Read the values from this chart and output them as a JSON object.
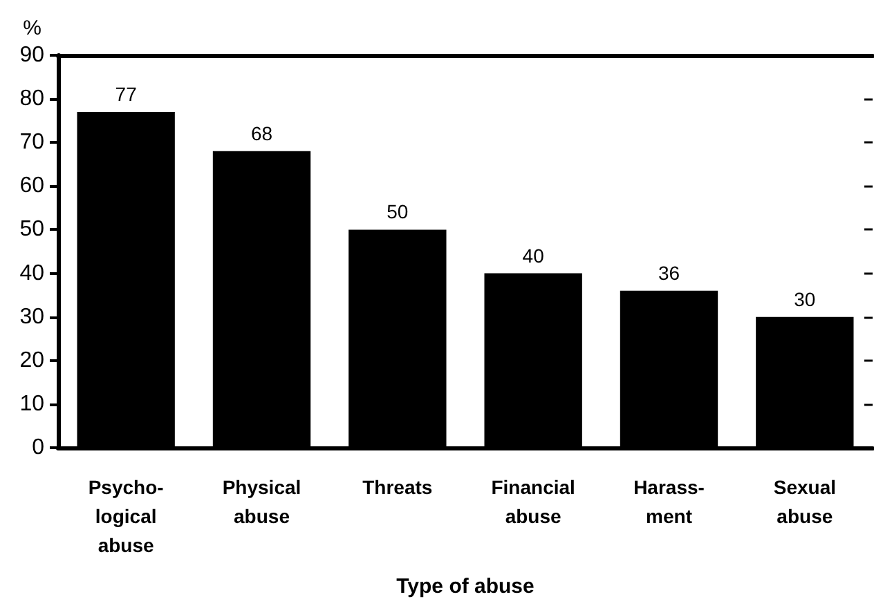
{
  "chart_data": {
    "type": "bar",
    "categories": [
      "Psycho-\nlogical\nabuse",
      "Physical\nabuse",
      "Threats",
      "Financial\nabuse",
      "Harass-\nment",
      "Sexual\nabuse"
    ],
    "values": [
      77,
      68,
      50,
      40,
      36,
      30
    ],
    "color": "#000000",
    "xlabel": "Type of abuse",
    "ylabel": "%",
    "ylim": [
      0,
      90
    ],
    "yticks": [
      0,
      10,
      20,
      30,
      40,
      50,
      60,
      70,
      80,
      90
    ],
    "data_labels": true
  }
}
